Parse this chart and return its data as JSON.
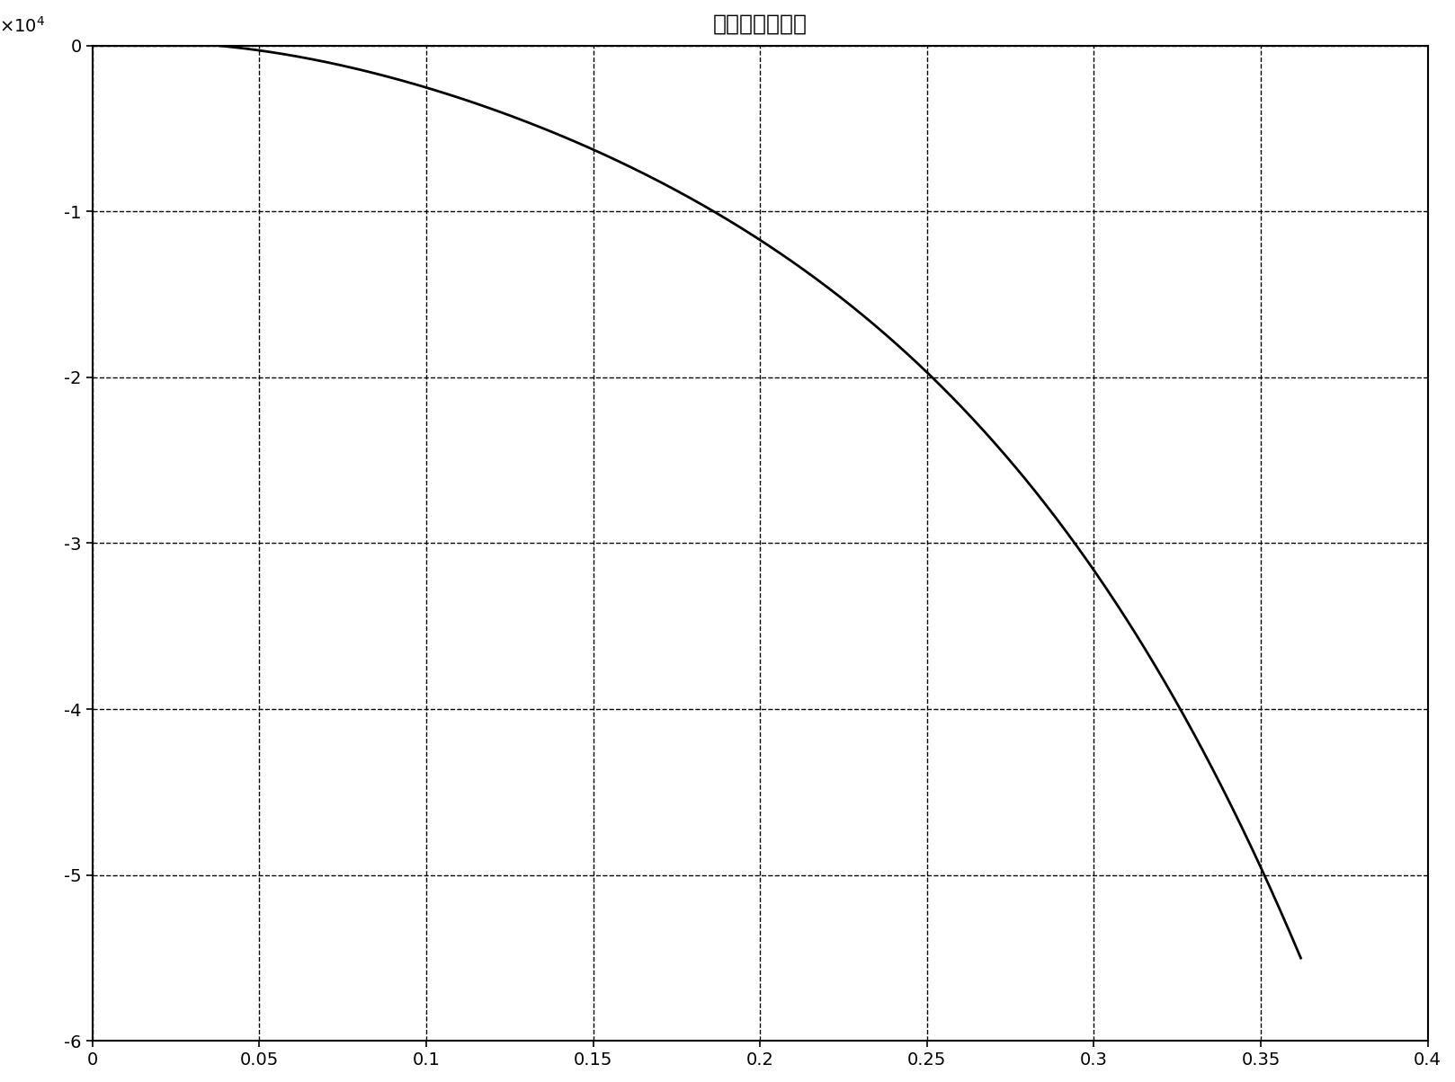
{
  "title": "高次相位误差图",
  "xlim": [
    0,
    0.4
  ],
  "ylim": [
    -60000,
    0
  ],
  "xticks": [
    0,
    0.05,
    0.1,
    0.15,
    0.2,
    0.25,
    0.3,
    0.35,
    0.4
  ],
  "yticks": [
    0,
    -10000,
    -20000,
    -30000,
    -40000,
    -50000,
    -60000
  ],
  "ytick_labels": [
    "0",
    "-1",
    "-2",
    "-3",
    "-4",
    "-5",
    "-6"
  ],
  "line_color": "#000000",
  "line_width": 2.0,
  "grid_color": "#000000",
  "grid_linestyle": "--",
  "grid_linewidth": 1.0,
  "bg_color": "#ffffff",
  "title_fontsize": 18,
  "tick_fontsize": 14,
  "curve_x_points": [
    0.0,
    0.05,
    0.1,
    0.15,
    0.2,
    0.25,
    0.3,
    0.35,
    0.36
  ],
  "curve_y_points": [
    0,
    -200,
    -2500,
    -6500,
    -11500,
    -20000,
    -31000,
    -51000,
    -53000
  ]
}
